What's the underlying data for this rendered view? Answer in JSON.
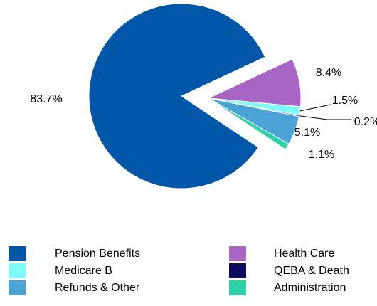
{
  "chart_data": {
    "type": "pie",
    "categories": [
      "Pension Benefits",
      "Health Care",
      "Medicare B",
      "QEBA & Death",
      "Refunds & Other",
      "Administration"
    ],
    "values": [
      83.7,
      8.4,
      1.5,
      0.2,
      5.1,
      1.1
    ],
    "value_labels": [
      "83.7%",
      "8.4%",
      "1.5%",
      "0.2%",
      "5.1%",
      "1.1%"
    ],
    "colors": [
      "#0057a8",
      "#a865c4",
      "#80f9f9",
      "#0d0d5c",
      "#4aa3d4",
      "#2ed1a8"
    ],
    "legend": "bottom"
  }
}
